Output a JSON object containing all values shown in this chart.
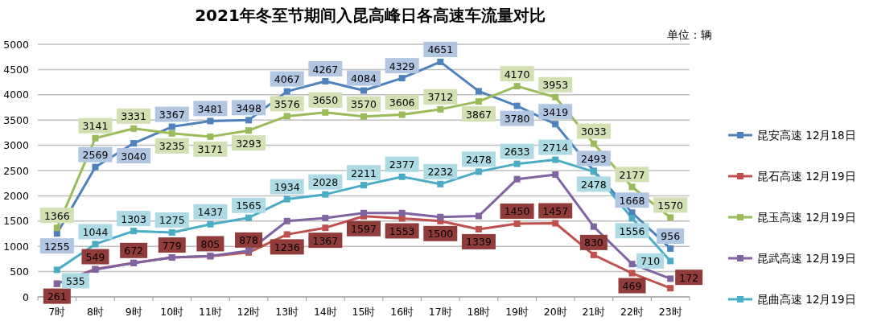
{
  "chart_data": {
    "type": "line",
    "title": "2021年冬至节期间入昆高峰日各高速车流量对比",
    "annotations": [
      "单位：辆"
    ],
    "categories": [
      "7时",
      "8时",
      "9时",
      "10时",
      "11时",
      "12时",
      "13时",
      "14时",
      "15时",
      "16时",
      "17时",
      "18时",
      "19时",
      "20时",
      "21时",
      "22时",
      "23时"
    ],
    "ylim": [
      0,
      5000
    ],
    "yticks": [
      0,
      500,
      1000,
      1500,
      2000,
      2500,
      3000,
      3500,
      4000,
      4500,
      5000
    ],
    "grid": "y",
    "legend": "right",
    "marker": "square",
    "series": [
      {
        "name": "昆安高速 12月18日",
        "color": "#4f81bd",
        "values": [
          1255,
          2569,
          3040,
          3367,
          3481,
          3498,
          4067,
          4267,
          4084,
          4329,
          4651,
          4070,
          3780,
          3419,
          2493,
          1668,
          956
        ],
        "value_labels": [
          "1255",
          "2569",
          "3040",
          "3367",
          "3481",
          "3498",
          "4067",
          "4267",
          "4084",
          "4329",
          "4651",
          null,
          "3780",
          "3419",
          "2493",
          "1668",
          "956"
        ]
      },
      {
        "name": "昆石高速 12月19日",
        "color": "#c0504d",
        "values": [
          261,
          549,
          672,
          779,
          805,
          878,
          1236,
          1367,
          1597,
          1553,
          1500,
          1339,
          1450,
          1457,
          830,
          469,
          172
        ],
        "value_labels": [
          "261",
          "549",
          "672",
          "779",
          "805",
          "878",
          "1236",
          "1367",
          "1597",
          "1553",
          "1500",
          "1339",
          "1450",
          "1457",
          "830",
          "469",
          "172"
        ]
      },
      {
        "name": "昆玉高速 12月19日",
        "color": "#9bbb59",
        "values": [
          1366,
          3141,
          3331,
          3235,
          3171,
          3293,
          3576,
          3650,
          3570,
          3606,
          3712,
          3867,
          4170,
          3953,
          3033,
          2177,
          1570
        ],
        "value_labels": [
          "1366",
          "3141",
          "3331",
          "3235",
          "3171",
          "3293",
          "3576",
          "3650",
          "3570",
          "3606",
          "3712",
          "3867",
          "4170",
          "3953",
          "3033",
          "2177",
          "1570"
        ]
      },
      {
        "name": "昆武高速 12月19日",
        "color": "#8064a2",
        "values": [
          260,
          540,
          670,
          780,
          810,
          910,
          1500,
          1560,
          1660,
          1660,
          1580,
          1600,
          2330,
          2420,
          1390,
          650,
          360
        ]
      },
      {
        "name": "昆曲高速 12月19日",
        "color": "#4bacc6",
        "values": [
          535,
          1044,
          1303,
          1275,
          1437,
          1565,
          1934,
          2028,
          2211,
          2377,
          2232,
          2478,
          2633,
          2714,
          2478,
          1556,
          710
        ],
        "value_labels": [
          "535",
          "1044",
          "1303",
          "1275",
          "1437",
          "1565",
          "1934",
          "2028",
          "2211",
          "2377",
          "2232",
          "2478",
          "2633",
          "2714",
          "2478",
          "1556",
          "710"
        ]
      }
    ]
  }
}
